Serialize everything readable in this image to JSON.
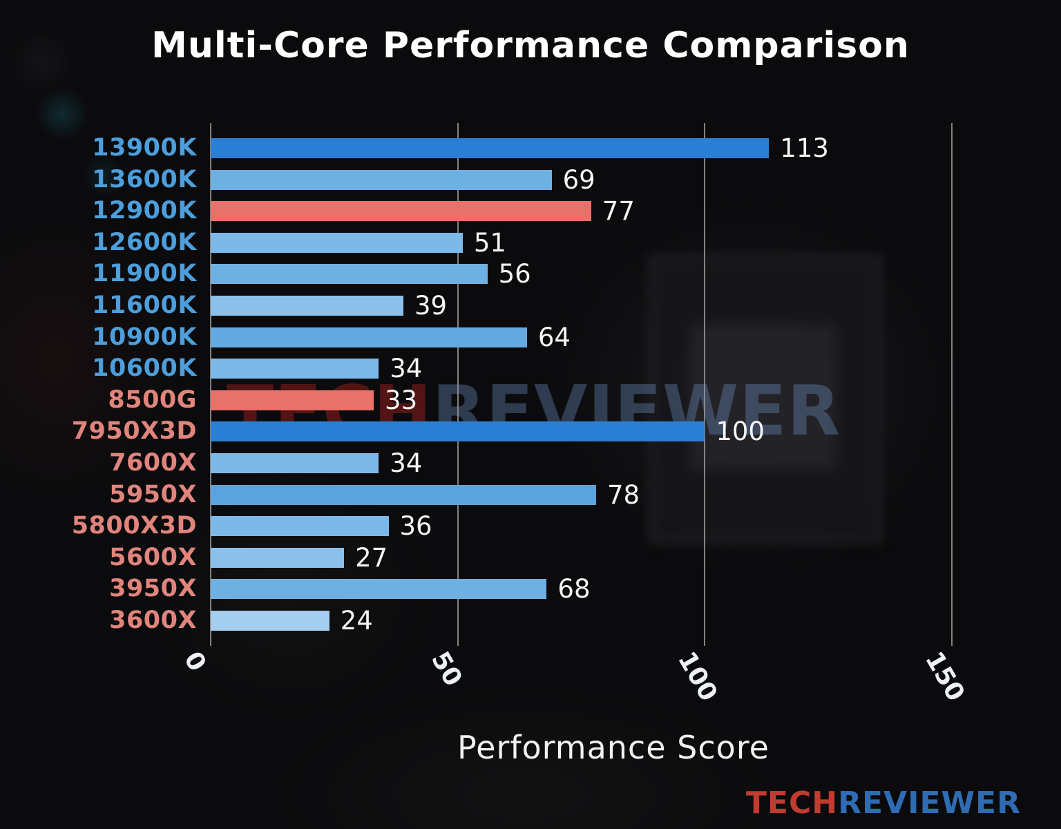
{
  "title": "Multi-Core Performance Comparison",
  "chart_data": {
    "type": "bar",
    "orientation": "horizontal",
    "categories": [
      "13900K",
      "13600K",
      "12900K",
      "12600K",
      "11900K",
      "11600K",
      "10900K",
      "10600K",
      "8500G",
      "7950X3D",
      "7600X",
      "5950X",
      "5800X3D",
      "5600X",
      "3950X",
      "3600X"
    ],
    "values": [
      113,
      69,
      77,
      51,
      56,
      39,
      64,
      34,
      33,
      100,
      34,
      78,
      36,
      27,
      68,
      24
    ],
    "bar_colors": [
      "#2a7fd4",
      "#6fb0e2",
      "#e8716a",
      "#7cb8e8",
      "#6fb0e2",
      "#8cc0ea",
      "#64a9e0",
      "#7cb8e8",
      "#e8716a",
      "#2a7fd4",
      "#7cb8e8",
      "#5ba3de",
      "#7cb8e8",
      "#8cc0ea",
      "#6fb0e2",
      "#a5cef0"
    ],
    "label_colors": [
      "#4d9edb",
      "#4d9edb",
      "#4d9edb",
      "#4d9edb",
      "#4d9edb",
      "#4d9edb",
      "#4d9edb",
      "#4d9edb",
      "#e1857c",
      "#e1857c",
      "#e1857c",
      "#e1857c",
      "#e1857c",
      "#e1857c",
      "#e1857c",
      "#e1857c"
    ],
    "value_label_color": "#f5f5f5",
    "xlabel": "Performance Score",
    "x_ticks": [
      0,
      50,
      100,
      150
    ],
    "xlim": [
      0,
      163
    ],
    "grid": true,
    "legend": "none"
  },
  "watermark": {
    "part1": "TECH",
    "part2": "REVIEWER",
    "part1_color": "rgba(155,30,30,0.50)",
    "part2_color": "rgba(115,150,200,0.35)"
  },
  "logo": {
    "part1": "TECH",
    "part2": "REVIEWER",
    "part1_color": "#c23b30",
    "part2_color": "#2f6cb3"
  }
}
